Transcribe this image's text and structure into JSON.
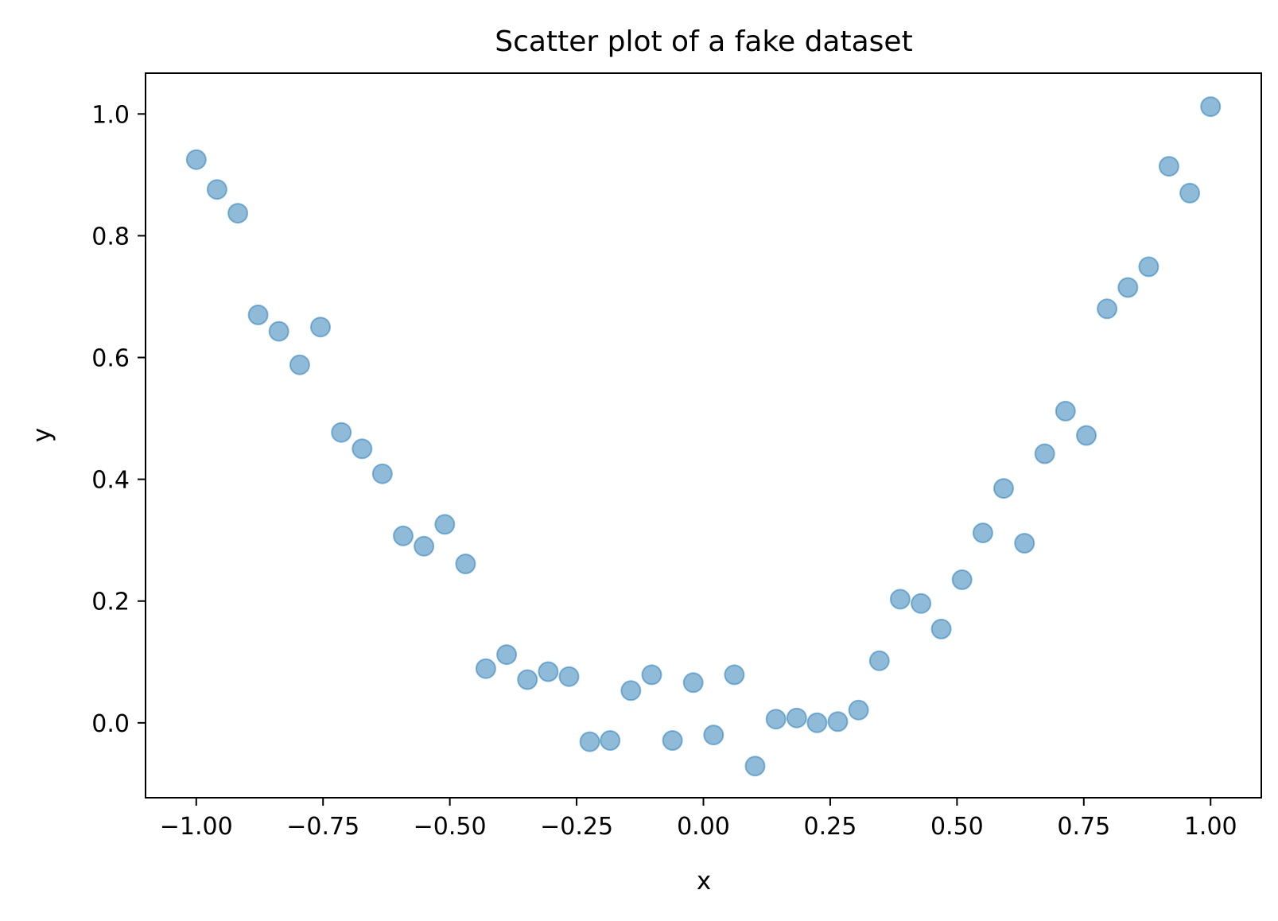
{
  "chart_data": {
    "type": "scatter",
    "title": "Scatter plot of a fake dataset",
    "xlabel": "x",
    "ylabel": "y",
    "xlim": [
      -1.1,
      1.1
    ],
    "ylim": [
      -0.123,
      1.067
    ],
    "grid": false,
    "legend": "none",
    "marker_color": "#1f77b4",
    "marker_alpha": 0.5,
    "x_ticks": [
      -1.0,
      -0.75,
      -0.5,
      -0.25,
      0.0,
      0.25,
      0.5,
      0.75,
      1.0
    ],
    "x_tick_labels": [
      "−1.00",
      "−0.75",
      "−0.50",
      "−0.25",
      "0.00",
      "0.25",
      "0.50",
      "0.75",
      "1.00"
    ],
    "y_ticks": [
      0.0,
      0.2,
      0.4,
      0.6,
      0.8,
      1.0
    ],
    "y_tick_labels": [
      "0.0",
      "0.2",
      "0.4",
      "0.6",
      "0.8",
      "1.0"
    ],
    "series": [
      {
        "x": [
          -1.0,
          -0.959,
          -0.918,
          -0.878,
          -0.837,
          -0.796,
          -0.755,
          -0.714,
          -0.673,
          -0.633,
          -0.592,
          -0.551,
          -0.51,
          -0.469,
          -0.429,
          -0.388,
          -0.347,
          -0.306,
          -0.265,
          -0.224,
          -0.184,
          -0.143,
          -0.102,
          -0.061,
          -0.02,
          0.02,
          0.061,
          0.102,
          0.143,
          0.184,
          0.224,
          0.265,
          0.306,
          0.347,
          0.388,
          0.429,
          0.469,
          0.51,
          0.551,
          0.592,
          0.633,
          0.673,
          0.714,
          0.755,
          0.796,
          0.837,
          0.878,
          0.918,
          0.959,
          1.0
        ],
        "y": [
          0.925,
          0.876,
          0.837,
          0.67,
          0.643,
          0.588,
          0.65,
          0.477,
          0.45,
          0.409,
          0.307,
          0.29,
          0.326,
          0.261,
          0.089,
          0.112,
          0.071,
          0.084,
          0.076,
          -0.031,
          -0.029,
          0.053,
          0.079,
          -0.029,
          0.066,
          -0.02,
          0.079,
          -0.071,
          0.006,
          0.008,
          0.0,
          0.002,
          0.021,
          0.102,
          0.203,
          0.196,
          0.154,
          0.235,
          0.312,
          0.385,
          0.295,
          0.442,
          0.512,
          0.472,
          0.68,
          0.715,
          0.749,
          0.914,
          0.87,
          1.012
        ]
      }
    ]
  }
}
